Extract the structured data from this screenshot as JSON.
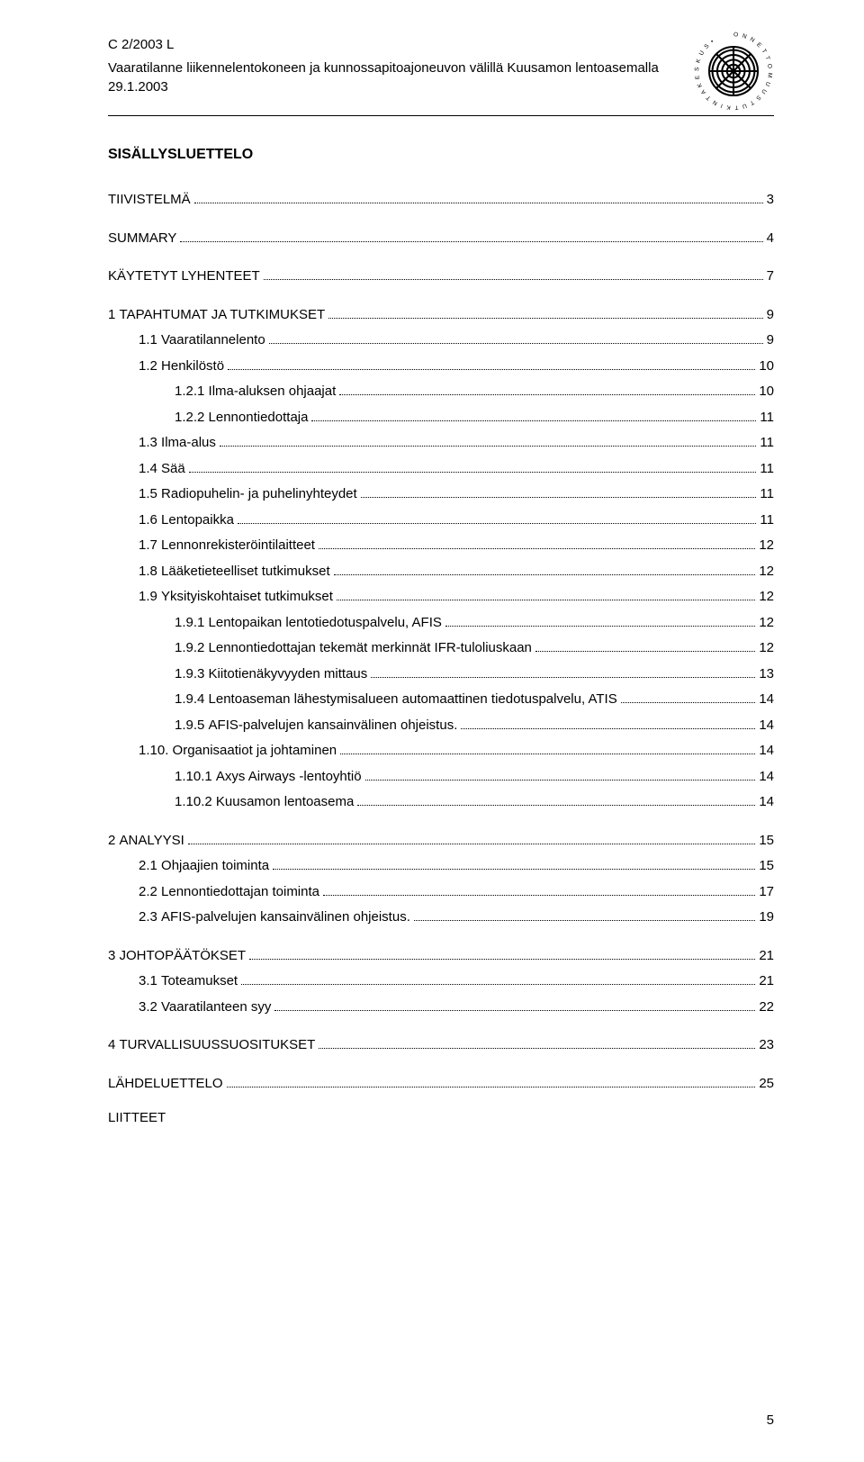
{
  "header": {
    "doc_code": "C 2/2003 L",
    "title_line": "Vaaratilanne liikennelentokoneen ja kunnossapitoajoneuvon välillä Kuusamon lentoasemalla",
    "date_line": "29.1.2003"
  },
  "section_title": "SISÄLLYSLUETTELO",
  "toc": [
    {
      "indent": 0,
      "num": "",
      "label": "TIIVISTELMÄ",
      "page": "3",
      "gap_after": true,
      "link": true
    },
    {
      "indent": 0,
      "num": "",
      "label": "SUMMARY",
      "page": "4",
      "gap_after": true,
      "link": true
    },
    {
      "indent": 0,
      "num": "",
      "label": "KÄYTETYT LYHENTEET",
      "page": "7",
      "gap_after": true,
      "link": true
    },
    {
      "indent": 0,
      "num": "1 ",
      "label": "TAPAHTUMAT JA TUTKIMUKSET",
      "page": "9",
      "link": true
    },
    {
      "indent": 1,
      "num": "1.1 ",
      "label": "Vaaratilannelento",
      "page": "9",
      "link": true
    },
    {
      "indent": 1,
      "num": "1.2 ",
      "label": "Henkilöstö",
      "page": "10",
      "link": true
    },
    {
      "indent": 2,
      "num": "1.2.1 ",
      "label": "Ilma-aluksen ohjaajat",
      "page": "10",
      "link": true
    },
    {
      "indent": 2,
      "num": "1.2.2 ",
      "label": "Lennontiedottaja",
      "page": "11",
      "link": true
    },
    {
      "indent": 1,
      "num": "1.3 ",
      "label": "Ilma-alus",
      "page": "11",
      "link": true
    },
    {
      "indent": 1,
      "num": "1.4 ",
      "label": "Sää",
      "page": "11",
      "link": true
    },
    {
      "indent": 1,
      "num": "1.5 ",
      "label": "Radiopuhelin- ja puhelinyhteydet",
      "page": "11",
      "link": true
    },
    {
      "indent": 1,
      "num": "1.6 ",
      "label": "Lentopaikka",
      "page": "11",
      "link": true
    },
    {
      "indent": 1,
      "num": "1.7 ",
      "label": "Lennonrekisteröintilaitteet",
      "page": "12",
      "link": true
    },
    {
      "indent": 1,
      "num": "1.8 ",
      "label": "Lääketieteelliset tutkimukset",
      "page": "12",
      "link": true
    },
    {
      "indent": 1,
      "num": "1.9 ",
      "label": "Yksityiskohtaiset tutkimukset",
      "page": "12",
      "link": true
    },
    {
      "indent": 2,
      "num": "1.9.1 ",
      "label": "Lentopaikan lentotiedotuspalvelu, AFIS",
      "page": "12",
      "link": true
    },
    {
      "indent": 2,
      "num": "1.9.2 ",
      "label": "Lennontiedottajan tekemät merkinnät IFR-tuloliuskaan",
      "page": "12",
      "link": true
    },
    {
      "indent": 2,
      "num": "1.9.3 ",
      "label": "Kiitotienäkyvyyden mittaus",
      "page": "13",
      "link": true
    },
    {
      "indent": 2,
      "num": "1.9.4 ",
      "label": "Lentoaseman lähestymisalueen automaattinen tiedotuspalvelu, ATIS",
      "page": "14",
      "link": true
    },
    {
      "indent": 2,
      "num": "1.9.5 ",
      "label": "AFIS-palvelujen kansainvälinen ohjeistus.",
      "page": "14",
      "link": true
    },
    {
      "indent": 1,
      "num": "1.10. ",
      "label": "Organisaatiot ja johtaminen",
      "page": "14",
      "link": true
    },
    {
      "indent": 2,
      "num": "1.10.1 ",
      "label": "Axys Airways -lentoyhtiö",
      "page": "14",
      "link": true
    },
    {
      "indent": 2,
      "num": "1.10.2 ",
      "label": "Kuusamon lentoasema",
      "page": "14",
      "gap_after": true,
      "link": true
    },
    {
      "indent": 0,
      "num": "2 ",
      "label": "ANALYYSI",
      "page": "15",
      "link": true
    },
    {
      "indent": 1,
      "num": "2.1 ",
      "label": "Ohjaajien toiminta",
      "page": "15",
      "link": true
    },
    {
      "indent": 1,
      "num": "2.2 ",
      "label": "Lennontiedottajan toiminta",
      "page": "17",
      "link": true
    },
    {
      "indent": 1,
      "num": "2.3 ",
      "label": "AFIS-palvelujen kansainvälinen ohjeistus.",
      "page": "19",
      "gap_after": true,
      "link": true
    },
    {
      "indent": 0,
      "num": "3 ",
      "label": "JOHTOPÄÄTÖKSET",
      "page": "21",
      "link": true
    },
    {
      "indent": 1,
      "num": "3.1 ",
      "label": "Toteamukset",
      "page": "21",
      "link": true
    },
    {
      "indent": 1,
      "num": "3.2 ",
      "label": "Vaaratilanteen syy",
      "page": "22",
      "gap_after": true,
      "link": true
    },
    {
      "indent": 0,
      "num": "4 ",
      "label": "TURVALLISUUSSUOSITUKSET",
      "page": "23",
      "gap_after": true,
      "link": true
    },
    {
      "indent": 0,
      "num": "",
      "label": "LÄHDELUETTELO",
      "page": "25",
      "link": true
    }
  ],
  "appendix_label": "LIITTEET",
  "page_number": "5",
  "colors": {
    "text": "#000000",
    "background": "#ffffff",
    "logo_stroke": "#231f20"
  },
  "fonts": {
    "body_family": "Arial, Helvetica, sans-serif",
    "body_size_pt": 11,
    "title_size_pt": 12
  }
}
